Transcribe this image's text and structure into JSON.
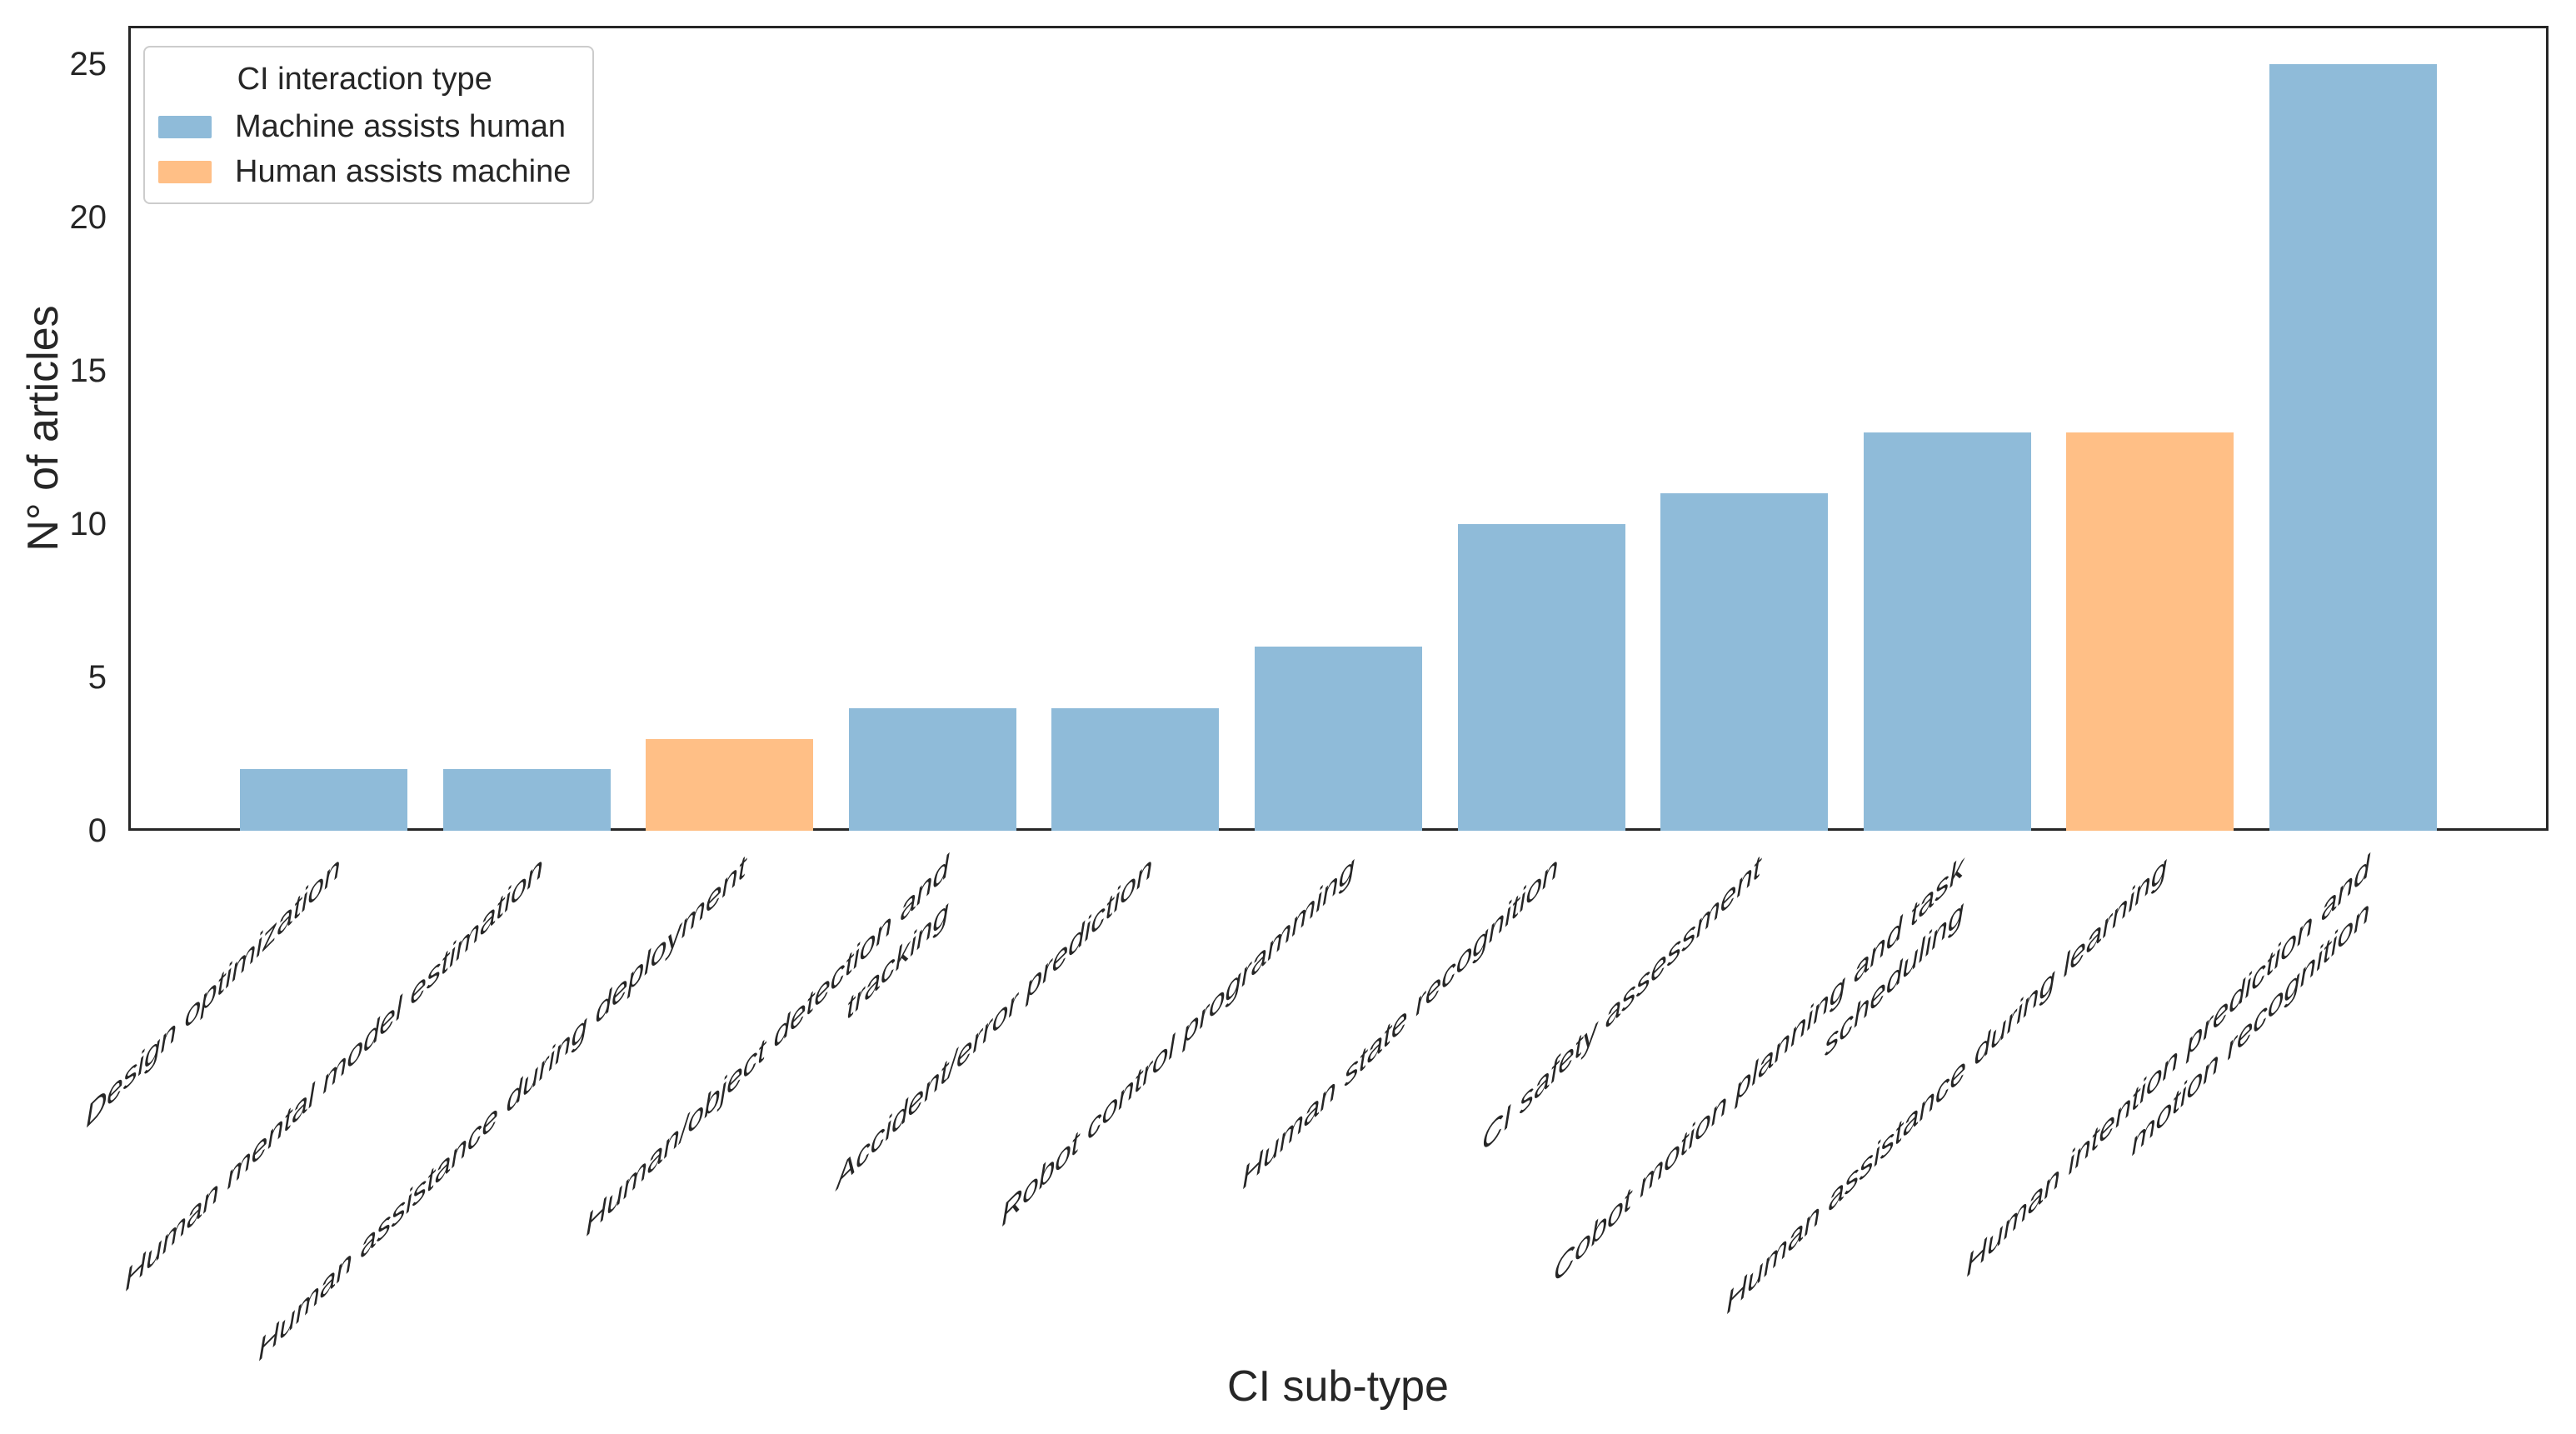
{
  "chart_data": {
    "type": "bar",
    "title": "",
    "xlabel": "CI sub-type",
    "ylabel": "N° of articles",
    "ylim": [
      0,
      26.25
    ],
    "yticks": [
      0,
      5,
      10,
      15,
      20,
      25
    ],
    "grid": false,
    "legend": {
      "title": "CI interaction type",
      "position": "upper left",
      "entries": [
        {
          "label": "Machine assists human",
          "color": "#8fbbd9"
        },
        {
          "label": "Human assists machine",
          "color": "#ffbf86"
        }
      ]
    },
    "colors": {
      "Machine assists human": "#8fbbd9",
      "Human assists machine": "#ffbf86"
    },
    "bars": [
      {
        "category": "Design optimization",
        "value": 2,
        "group": "Machine assists human"
      },
      {
        "category": "Human mental model estimation",
        "value": 2,
        "group": "Machine assists human"
      },
      {
        "category": "Human assistance during deployment",
        "value": 3,
        "group": "Human assists machine"
      },
      {
        "category": "Human/object detection and tracking",
        "display": "Human/object detection and\ntracking",
        "value": 4,
        "group": "Machine assists human"
      },
      {
        "category": "Accident/error prediction",
        "value": 4,
        "group": "Machine assists human"
      },
      {
        "category": "Robot control programming",
        "value": 6,
        "group": "Machine assists human"
      },
      {
        "category": "Human state recognition",
        "value": 10,
        "group": "Machine assists human"
      },
      {
        "category": "CI safety assessment",
        "value": 11,
        "group": "Machine assists human"
      },
      {
        "category": "Cobot motion planning and task scheduling",
        "display": "Cobot motion planning and task\nscheduling",
        "value": 13,
        "group": "Machine assists human"
      },
      {
        "category": "Human assistance during learning",
        "value": 13,
        "group": "Human assists machine"
      },
      {
        "category": "Human intention prediction and motion recognition",
        "display": "Human intention prediction and\nmotion recognition",
        "value": 25,
        "group": "Machine assists human"
      }
    ]
  }
}
